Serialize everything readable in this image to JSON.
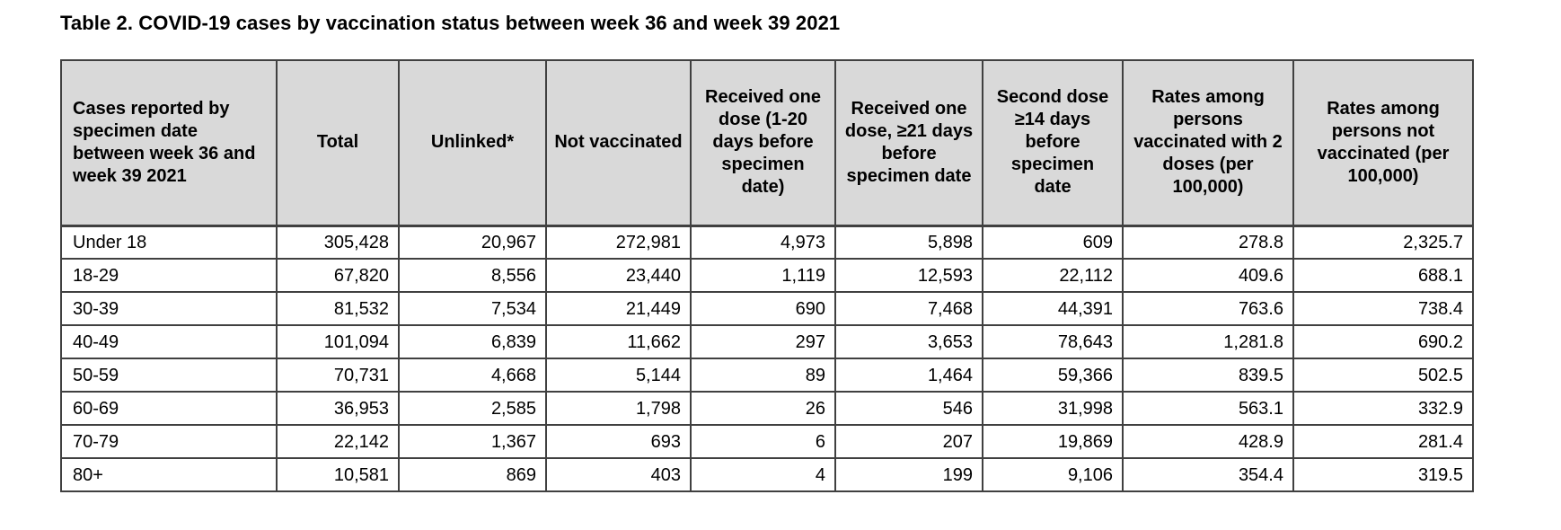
{
  "page": {
    "title": "Table 2. COVID-19 cases by vaccination status between week 36 and week 39 2021"
  },
  "table": {
    "header": [
      "Cases reported by specimen date between week 36 and week 39 2021",
      "Total",
      "Unlinked*",
      "Not vaccinated",
      "Received one dose (1-20 days before specimen date)",
      "Received one dose, ≥21 days before specimen date",
      "Second dose ≥14 days before specimen date",
      "Rates among persons vaccinated with 2 doses (per 100,000)",
      "Rates among persons not vaccinated (per 100,000)"
    ],
    "rows": [
      [
        "Under 18",
        "305,428",
        "20,967",
        "272,981",
        "4,973",
        "5,898",
        "609",
        "278.8",
        "2,325.7"
      ],
      [
        "18-29",
        "67,820",
        "8,556",
        "23,440",
        "1,119",
        "12,593",
        "22,112",
        "409.6",
        "688.1"
      ],
      [
        "30-39",
        "81,532",
        "7,534",
        "21,449",
        "690",
        "7,468",
        "44,391",
        "763.6",
        "738.4"
      ],
      [
        "40-49",
        "101,094",
        "6,839",
        "11,662",
        "297",
        "3,653",
        "78,643",
        "1,281.8",
        "690.2"
      ],
      [
        "50-59",
        "70,731",
        "4,668",
        "5,144",
        "89",
        "1,464",
        "59,366",
        "839.5",
        "502.5"
      ],
      [
        "60-69",
        "36,953",
        "2,585",
        "1,798",
        "26",
        "546",
        "31,998",
        "563.1",
        "332.9"
      ],
      [
        "70-79",
        "22,142",
        "1,367",
        "693",
        "6",
        "207",
        "19,869",
        "428.9",
        "281.4"
      ],
      [
        "80+",
        "10,581",
        "869",
        "403",
        "4",
        "199",
        "9,106",
        "354.4",
        "319.5"
      ]
    ],
    "colors": {
      "header_bg": "#d9d9d9",
      "border": "#404040",
      "body_bg": "#ffffff"
    }
  }
}
